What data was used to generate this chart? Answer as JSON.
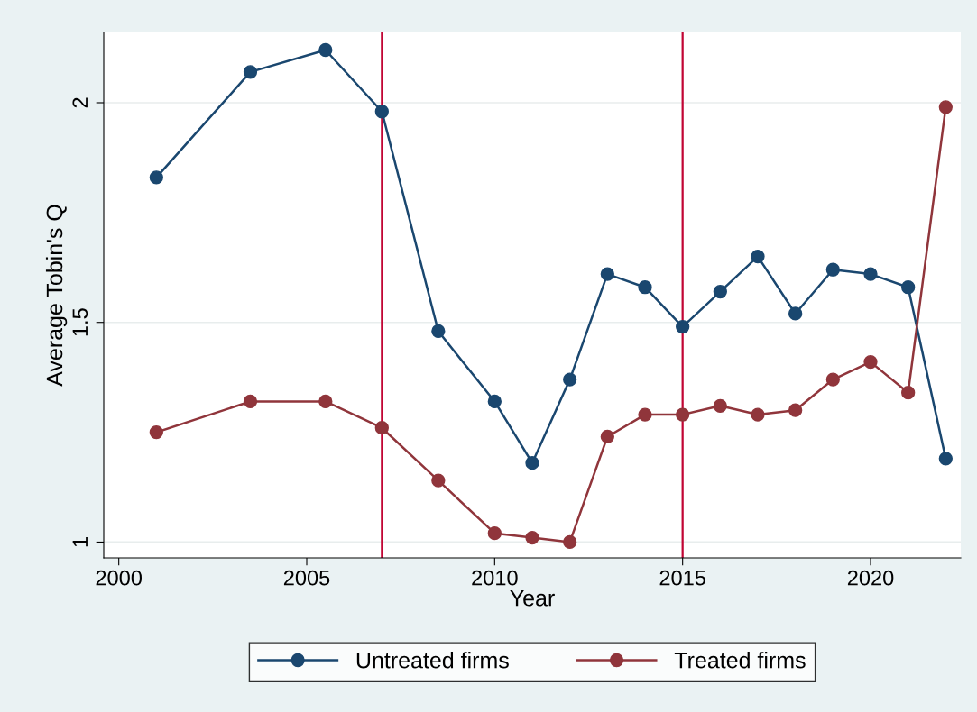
{
  "chart_data": {
    "type": "line",
    "xlabel": "Year",
    "ylabel": "Average Tobin's Q",
    "x": [
      2001,
      2003.5,
      2005.5,
      2007,
      2008.5,
      2010,
      2011,
      2012,
      2013,
      2014,
      2015,
      2016,
      2017,
      2018,
      2019,
      2020,
      2021,
      2022
    ],
    "series": [
      {
        "name": "Untreated firms",
        "color": "#1a476f",
        "values": [
          1.83,
          2.07,
          2.12,
          1.98,
          1.48,
          1.32,
          1.18,
          1.37,
          1.61,
          1.58,
          1.49,
          1.57,
          1.65,
          1.52,
          1.62,
          1.61,
          1.58,
          1.19
        ]
      },
      {
        "name": "Treated firms",
        "color": "#90353b",
        "values": [
          1.25,
          1.32,
          1.32,
          1.26,
          1.14,
          1.02,
          1.01,
          1.0,
          1.24,
          1.29,
          1.29,
          1.31,
          1.29,
          1.3,
          1.37,
          1.41,
          1.34,
          1.99
        ]
      }
    ],
    "xlim": [
      1999.6,
      2022.4
    ],
    "xticks": [
      2000,
      2005,
      2010,
      2015,
      2020
    ],
    "ylim": [
      0.964,
      2.16
    ],
    "yticks": [
      1,
      1.5,
      2
    ],
    "ref_lines": [
      {
        "axis": "x",
        "value": 2007,
        "color": "#c10534"
      },
      {
        "axis": "x",
        "value": 2015,
        "color": "#c10534"
      }
    ],
    "grid": "y",
    "legend": "bottom",
    "marker": "circle",
    "line_style": "solid"
  }
}
